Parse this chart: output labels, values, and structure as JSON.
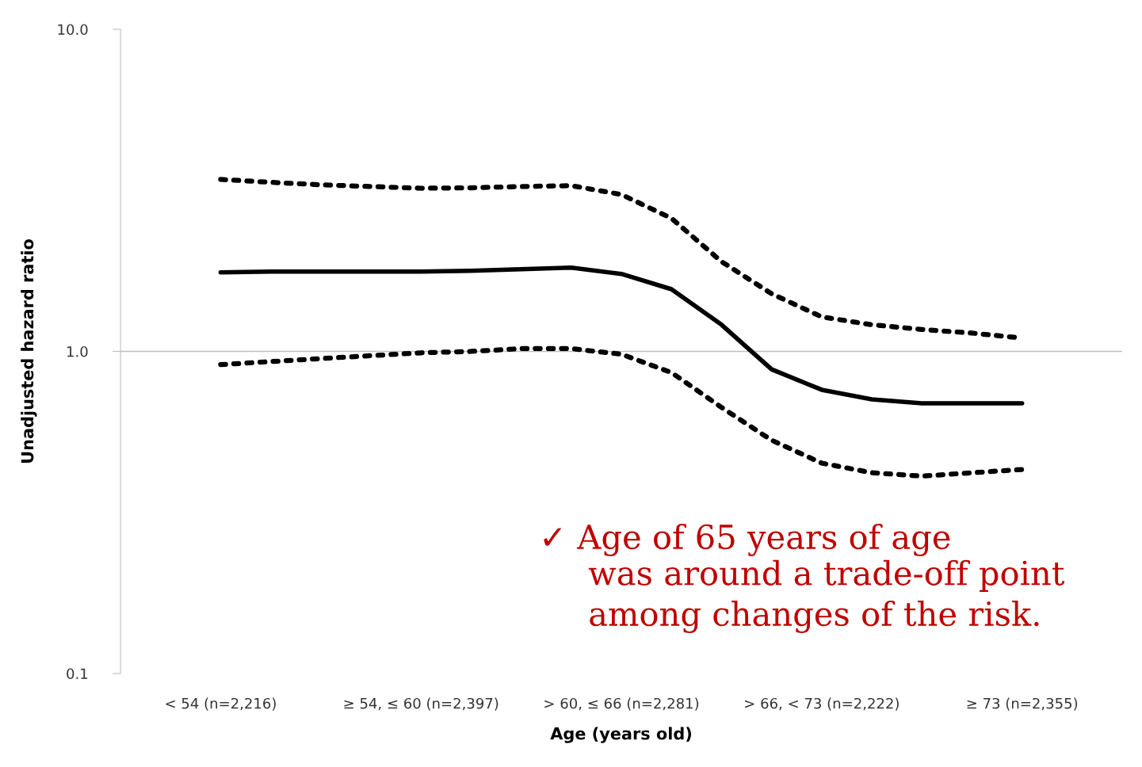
{
  "chart_data": {
    "type": "line",
    "xlabel": "Age (years old)",
    "ylabel": "Unadjusted hazard ratio",
    "categories": [
      "< 54 (n=2,216)",
      null,
      null,
      null,
      "≥ 54, ≤ 60 (n=2,397)",
      null,
      null,
      null,
      "> 60, ≤ 66 (n=2,281)",
      null,
      null,
      null,
      "> 66, < 73 (n=2,222)",
      null,
      null,
      null,
      "≥ 73 (n=2,355)"
    ],
    "log": true,
    "ylim": [
      0.1,
      10
    ],
    "yticks": [
      {
        "value": 0.1,
        "label": "0.1"
      },
      {
        "value": 1,
        "label": "1.0"
      },
      {
        "value": 10,
        "label": "10.0"
      }
    ],
    "grid": false,
    "legend": false,
    "marker": "none",
    "ref_lines": [
      {
        "axis": "y",
        "value": 1,
        "color": "#bfbfbf"
      }
    ],
    "series": [
      {
        "color": "#000000",
        "line_style": "solid",
        "values": [
          1.76,
          1.77,
          1.77,
          1.77,
          1.77,
          1.78,
          1.8,
          1.82,
          1.74,
          1.56,
          1.21,
          0.88,
          0.76,
          0.71,
          0.69,
          0.69,
          0.69
        ]
      },
      {
        "color": "#000000",
        "line_style": "dotted",
        "values": [
          3.42,
          3.35,
          3.29,
          3.25,
          3.21,
          3.22,
          3.25,
          3.27,
          3.07,
          2.59,
          1.9,
          1.51,
          1.28,
          1.21,
          1.17,
          1.14,
          1.1
        ]
      },
      {
        "color": "#000000",
        "line_style": "dotted",
        "values": [
          0.91,
          0.93,
          0.95,
          0.97,
          0.99,
          1.0,
          1.02,
          1.02,
          0.98,
          0.86,
          0.67,
          0.53,
          0.45,
          0.42,
          0.41,
          0.42,
          0.43
        ]
      }
    ],
    "annotations": [
      "✓ Age of 65 years of age",
      "was around a trade-off point among changes of the risk."
    ]
  }
}
